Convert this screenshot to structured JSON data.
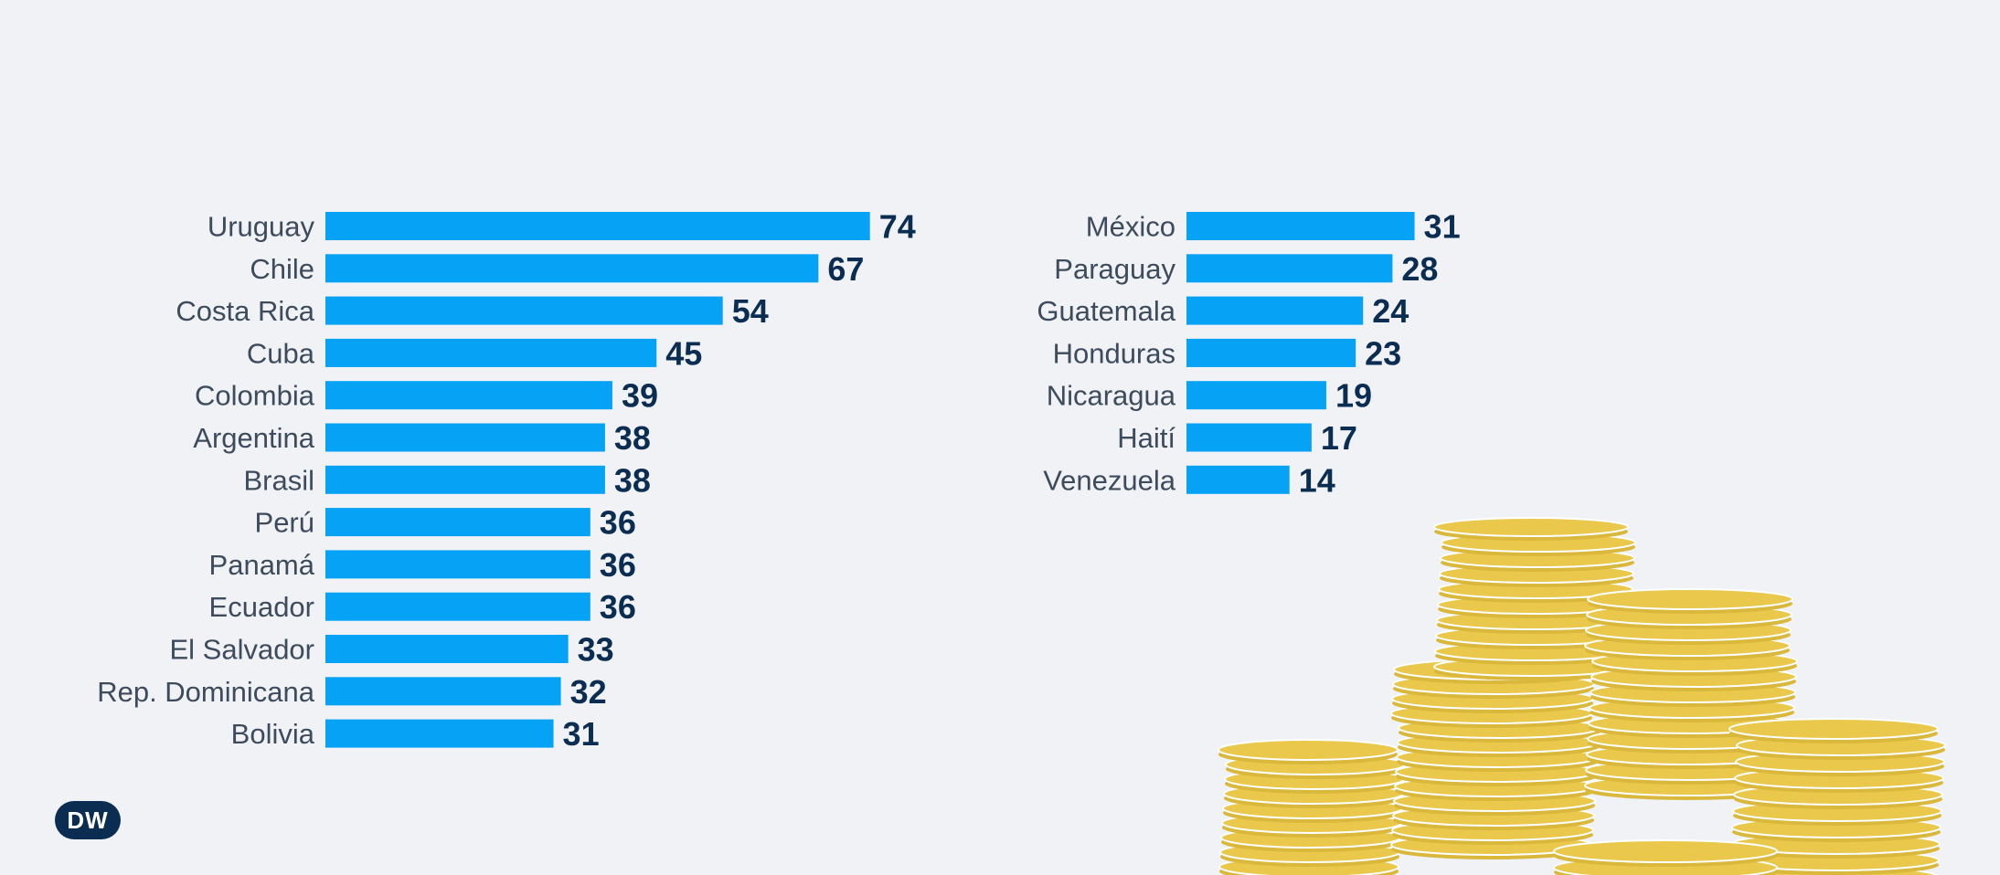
{
  "chart_data": [
    {
      "type": "bar",
      "orientation": "horizontal",
      "categories": [
        "Uruguay",
        "Chile",
        "Costa Rica",
        "Cuba",
        "Colombia",
        "Argentina",
        "Brasil",
        "Perú",
        "Panamá",
        "Ecuador",
        "El Salvador",
        "Rep. Dominicana",
        "Bolivia"
      ],
      "values": [
        74,
        67,
        54,
        45,
        39,
        38,
        38,
        36,
        36,
        36,
        33,
        32,
        31
      ],
      "grid": false,
      "data_labels": true
    },
    {
      "type": "bar",
      "orientation": "horizontal",
      "categories": [
        "México",
        "Paraguay",
        "Guatemala",
        "Honduras",
        "Nicaragua",
        "Haití",
        "Venezuela"
      ],
      "values": [
        31,
        28,
        24,
        23,
        19,
        17,
        14
      ],
      "grid": false,
      "data_labels": true
    }
  ],
  "colors": {
    "background": "#f0f2f5",
    "bar": "#05a2f5",
    "value_text": "#0c2d52",
    "label_text": "#3d4b5c",
    "coin": "#e9c84b",
    "coin_edge": "#ffffff"
  },
  "logo": {
    "text": "DW",
    "icon": "dw-logo-icon"
  },
  "decoration": {
    "icon": "coin-stacks-illustration"
  }
}
